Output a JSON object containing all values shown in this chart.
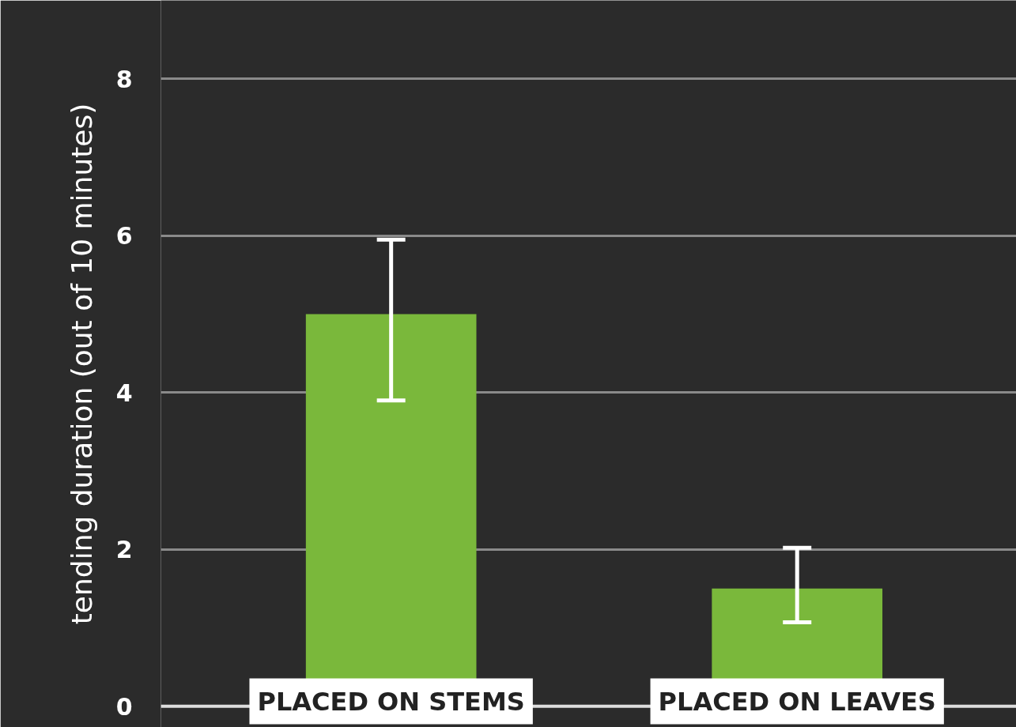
{
  "chart_data": {
    "type": "bar",
    "ylabel": "tending duration (out of 10 minutes)",
    "categories": [
      "PLACED ON STEMS",
      "PLACED ON LEAVES"
    ],
    "values": [
      5.0,
      1.5
    ],
    "errors": [
      [
        3.9,
        5.95
      ],
      [
        1.07,
        2.02
      ]
    ],
    "color": "#7ab83b",
    "ylim": [
      -0.27,
      9
    ],
    "yticks": [
      0,
      2,
      4,
      6,
      8
    ],
    "grid": "y"
  }
}
